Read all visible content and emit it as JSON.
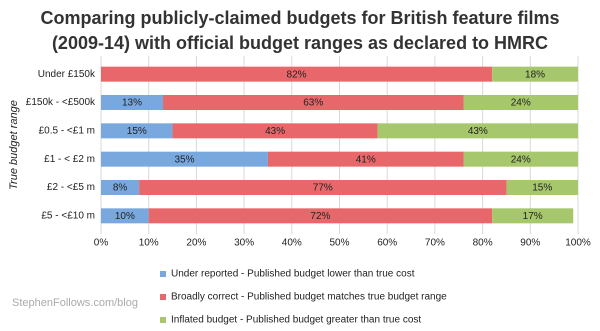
{
  "chart_data": {
    "type": "stacked-bar-horizontal",
    "title_lines": [
      "Comparing publicly-claimed budgets for British feature films",
      "(2009-14) with official budget ranges as declared to HMRC"
    ],
    "y_label": "True budget range",
    "watermark": "StephenFollows.com/blog",
    "categories": [
      "Under £150k",
      "£150k - <£500k",
      "£0.5 - <£1 m",
      "£1 - < £2 m",
      "£2 - <£5 m",
      "£5 - <£10 m"
    ],
    "series": [
      {
        "name": "Under reported - Published budget lower than true cost",
        "color": "#79a8df",
        "values": [
          null,
          13,
          15,
          35,
          8,
          10
        ],
        "value_labels": [
          null,
          "13%",
          "15%",
          "35%",
          "8%",
          "10%"
        ]
      },
      {
        "name": "Broadly correct - Published budget matches true budget range",
        "color": "#e8676b",
        "values": [
          82,
          63,
          43,
          41,
          77,
          72
        ],
        "value_labels": [
          "82%",
          "63%",
          "43%",
          "41%",
          "77%",
          "72%"
        ]
      },
      {
        "name": "Inflated budget - Published budget greater than true cost",
        "color": "#a6c76b",
        "values": [
          18,
          24,
          43,
          24,
          15,
          17
        ],
        "value_labels": [
          "18%",
          "24%",
          "43%",
          "24%",
          "15%",
          "17%"
        ]
      }
    ],
    "xlim": [
      0,
      100
    ],
    "xticks": [
      {
        "value": 0,
        "label": "0%"
      },
      {
        "value": 10,
        "label": "10%"
      },
      {
        "value": 20,
        "label": "20%"
      },
      {
        "value": 30,
        "label": "30%"
      },
      {
        "value": 40,
        "label": "40%"
      },
      {
        "value": 50,
        "label": "50%"
      },
      {
        "value": 60,
        "label": "60%"
      },
      {
        "value": 70,
        "label": "70%"
      },
      {
        "value": 80,
        "label": "80%"
      },
      {
        "value": 90,
        "label": "90%"
      },
      {
        "value": 100,
        "label": "100%"
      }
    ],
    "grid": true
  }
}
